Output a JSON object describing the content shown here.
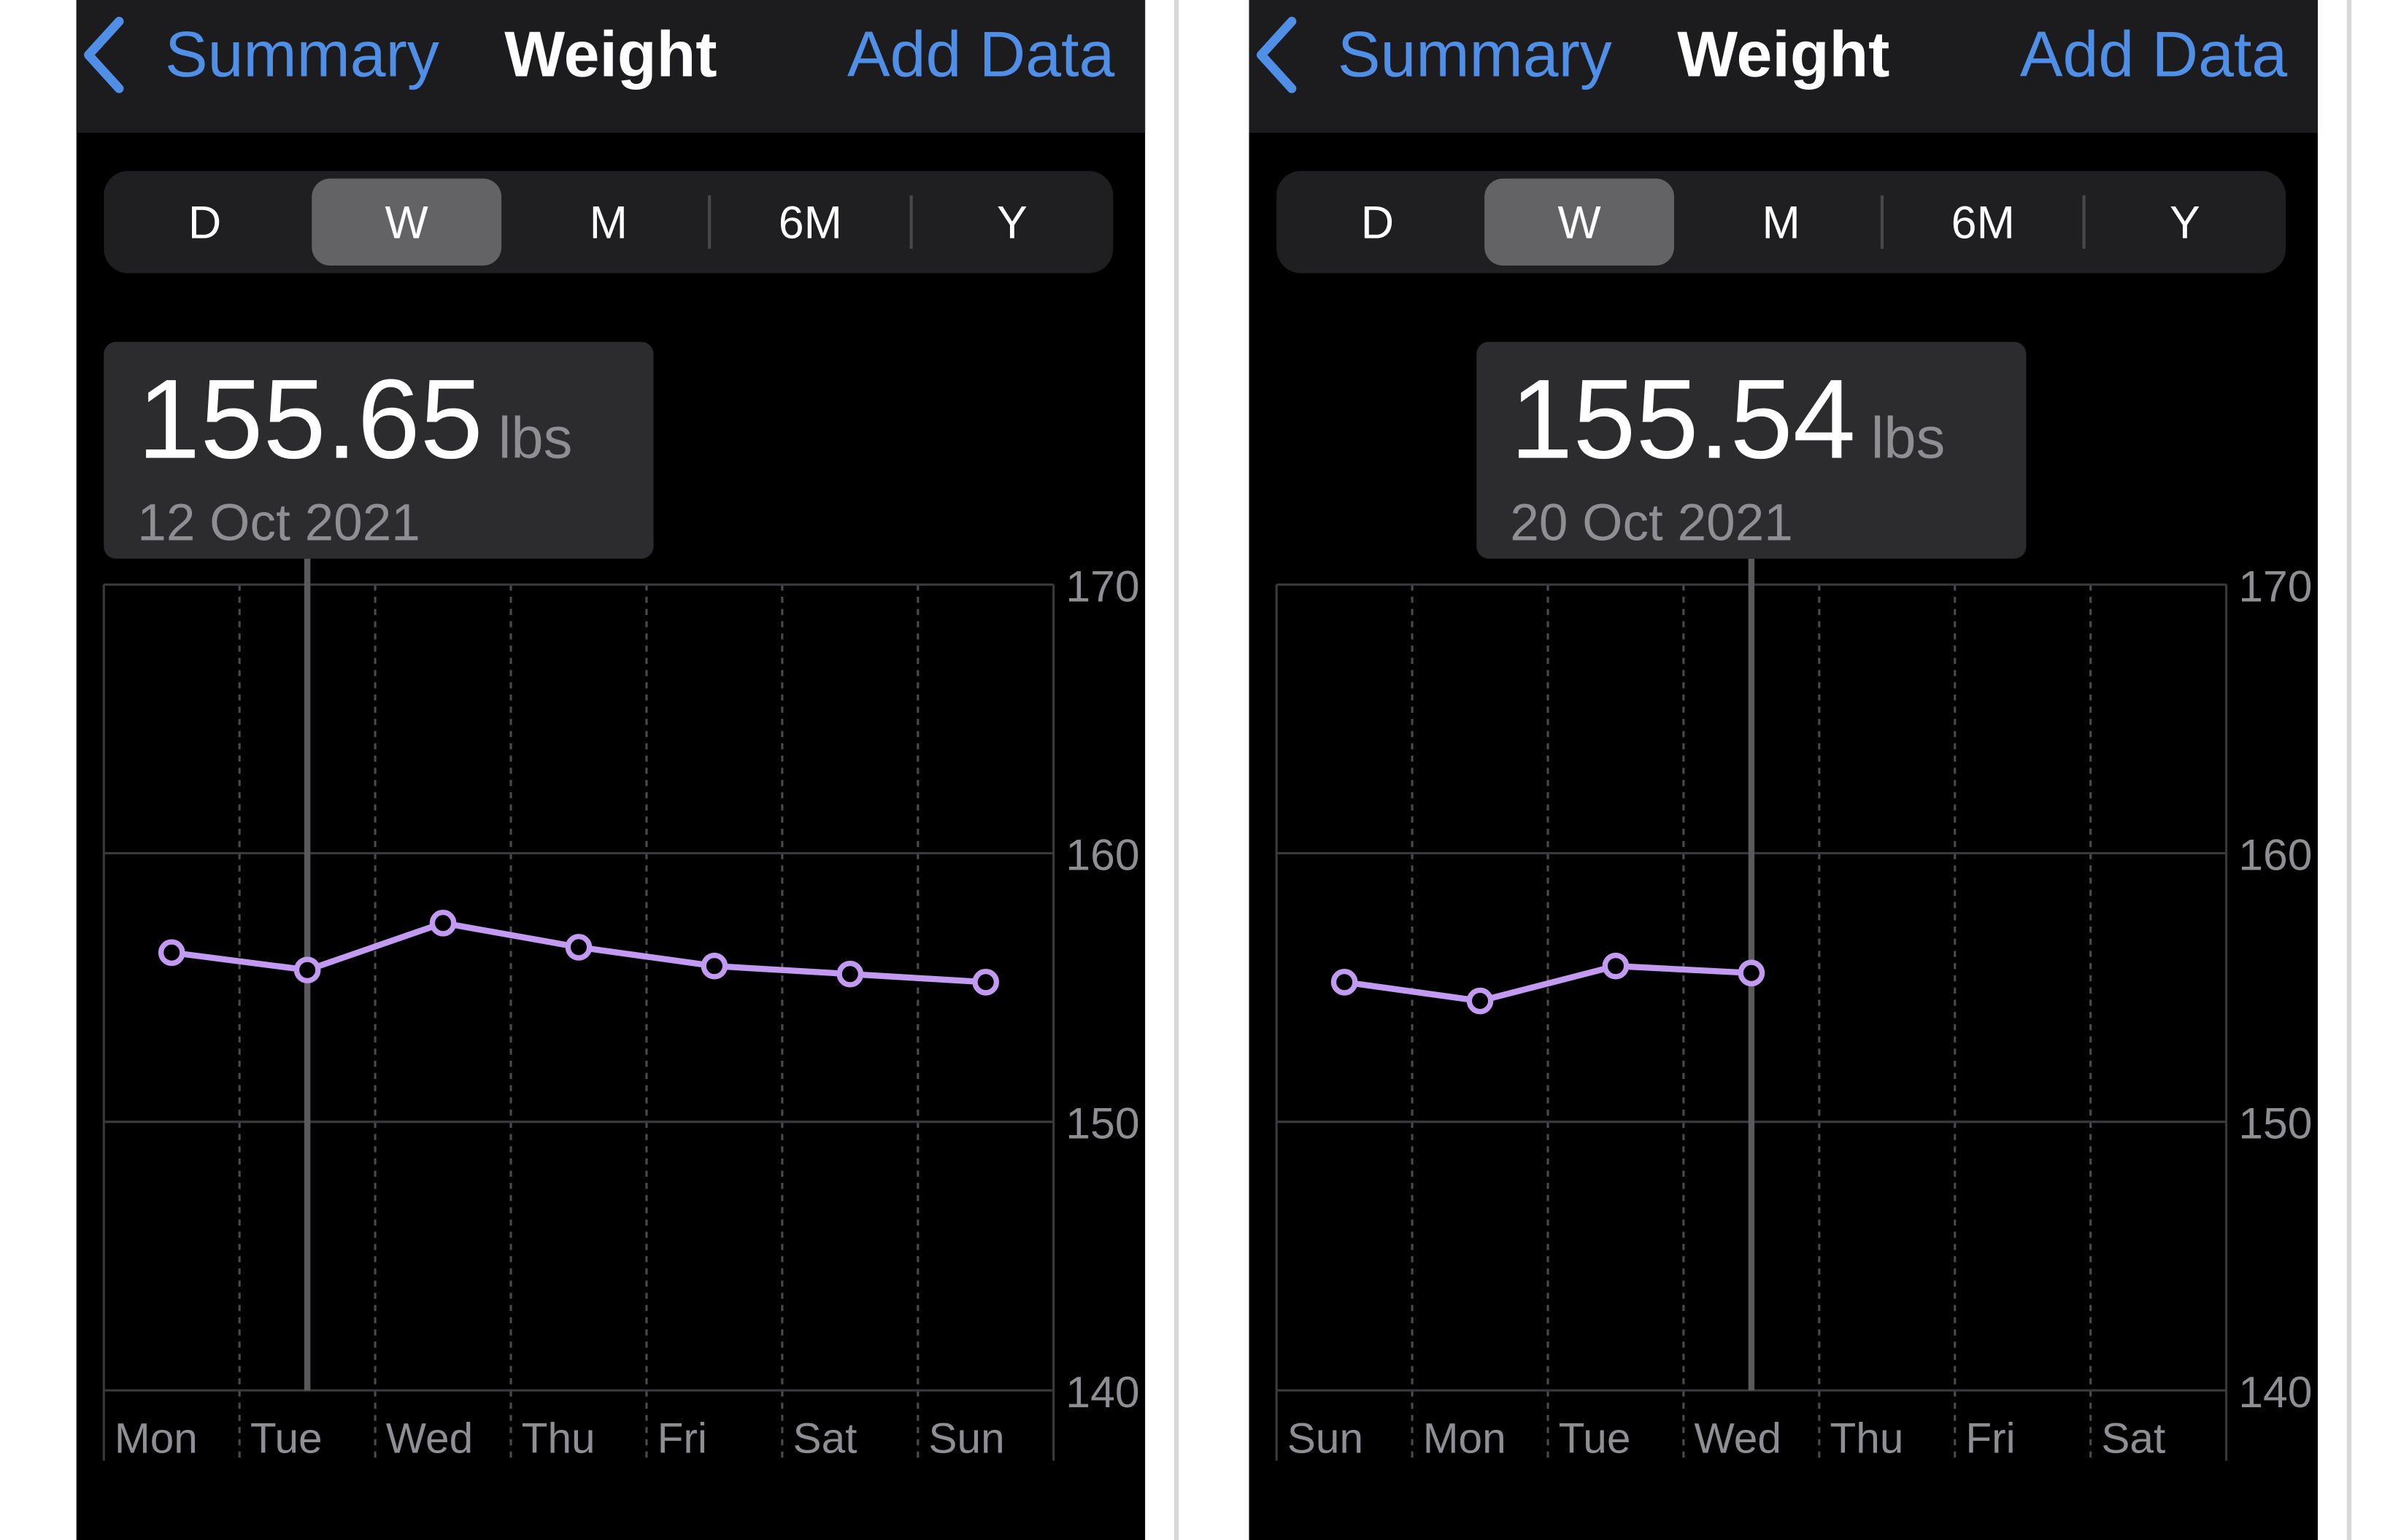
{
  "panels": [
    {
      "nav": {
        "back": "Summary",
        "title": "Weight",
        "action": "Add Data"
      },
      "segments": [
        "D",
        "W",
        "M",
        "6M",
        "Y"
      ],
      "selected_segment": "W",
      "readout": {
        "value": 155.65,
        "unit": "lbs",
        "date": "12 Oct 2021"
      },
      "chart": {
        "type": "line",
        "categories": [
          "Mon",
          "Tue",
          "Wed",
          "Thu",
          "Fri",
          "Sat",
          "Sun"
        ],
        "values": [
          156.3,
          155.65,
          157.4,
          156.5,
          155.8,
          155.5,
          155.2
        ],
        "color": "#c39af2",
        "ylim": [
          140,
          170
        ],
        "yticks": [
          140,
          150,
          160,
          170
        ],
        "grid": true
      }
    },
    {
      "nav": {
        "back": "Summary",
        "title": "Weight",
        "action": "Add Data"
      },
      "segments": [
        "D",
        "W",
        "M",
        "6M",
        "Y"
      ],
      "selected_segment": "W",
      "readout": {
        "value": 155.54,
        "unit": "lbs",
        "date": "20 Oct 2021"
      },
      "chart": {
        "type": "line",
        "categories": [
          "Sun",
          "Mon",
          "Tue",
          "Wed",
          "Thu",
          "Fri",
          "Sat"
        ],
        "values": [
          155.2,
          154.5,
          155.8,
          155.54,
          null,
          null,
          null
        ],
        "color": "#c39af2",
        "ylim": [
          140,
          170
        ],
        "yticks": [
          140,
          150,
          160,
          170
        ],
        "grid": true
      }
    }
  ]
}
